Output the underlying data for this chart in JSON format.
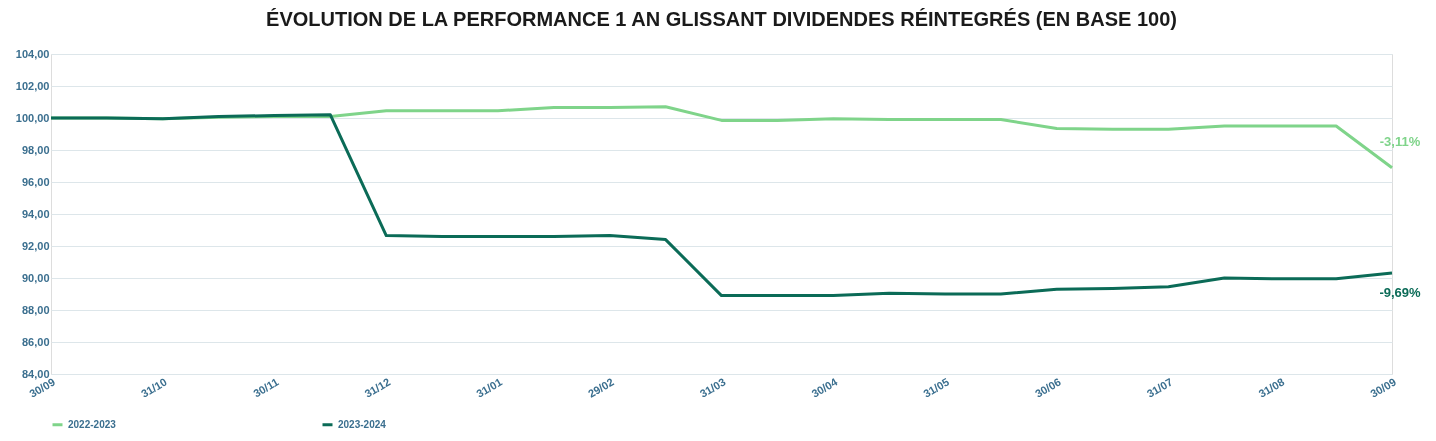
{
  "chart_data": {
    "type": "line",
    "title": "ÉVOLUTION DE LA PERFORMANCE 1 AN GLISSANT DIVIDENDES RÉINTEGRÉS (EN BASE 100)",
    "categories": [
      "30/09",
      null,
      "31/10",
      null,
      "30/11",
      null,
      "31/12",
      null,
      "31/01",
      null,
      "29/02",
      null,
      "31/03",
      null,
      "30/04",
      null,
      "31/05",
      null,
      "30/06",
      null,
      "31/07",
      null,
      "31/08",
      null,
      "30/09"
    ],
    "series": [
      {
        "name": "2022-2023",
        "color": "#7fd48a",
        "values": [
          100.0,
          100.0,
          99.95,
          100.05,
          100.1,
          100.1,
          100.45,
          100.45,
          100.45,
          100.65,
          100.65,
          100.7,
          99.85,
          99.85,
          99.95,
          99.9,
          99.9,
          99.9,
          99.35,
          99.3,
          99.3,
          99.5,
          99.5,
          99.5,
          96.89
        ]
      },
      {
        "name": "2023-2024",
        "color": "#0b6b57",
        "values": [
          100.0,
          100.0,
          99.95,
          100.1,
          100.15,
          100.2,
          92.65,
          92.6,
          92.6,
          92.6,
          92.65,
          92.4,
          88.9,
          88.9,
          88.9,
          89.05,
          89.0,
          89.0,
          89.3,
          89.35,
          89.45,
          90.0,
          89.95,
          89.95,
          90.31
        ]
      }
    ],
    "annotations": [
      "-3,11%",
      "-9,69%"
    ],
    "ylim": [
      84,
      104
    ],
    "yticks": [
      {
        "value": 84,
        "label": "84,00"
      },
      {
        "value": 86,
        "label": "86,00"
      },
      {
        "value": 88,
        "label": "88,00"
      },
      {
        "value": 90,
        "label": "90,00"
      },
      {
        "value": 92,
        "label": "92,00"
      },
      {
        "value": 94,
        "label": "94,00"
      },
      {
        "value": 96,
        "label": "96,00"
      },
      {
        "value": 98,
        "label": "98,00"
      },
      {
        "value": 100,
        "label": "100,00"
      },
      {
        "value": 102,
        "label": "102,00"
      },
      {
        "value": 104,
        "label": "104,00"
      }
    ],
    "grid": "y",
    "legend": "bottom",
    "marker": "none",
    "line_style": "solid"
  }
}
